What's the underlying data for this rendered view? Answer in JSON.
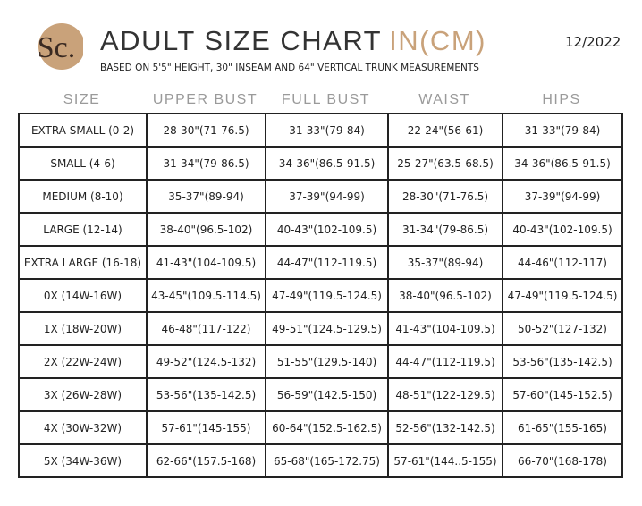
{
  "header": {
    "logo": "Sc.",
    "title": "ADULT SIZE CHART",
    "title_unit": "IN(CM)",
    "date": "12/2022",
    "subtitle": "BASED ON 5'5\" HEIGHT, 30\" INSEAM  AND 64\" VERTICAL TRUNK MEASUREMENTS"
  },
  "table": {
    "columns": [
      "SIZE",
      "UPPER BUST",
      "FULL BUST",
      "WAIST",
      "HIPS"
    ],
    "rows": [
      [
        "EXTRA SMALL (0-2)",
        "28-30\"(71-76.5)",
        "31-33\"(79-84)",
        "22-24\"(56-61)",
        "31-33\"(79-84)"
      ],
      [
        "SMALL (4-6)",
        "31-34\"(79-86.5)",
        "34-36\"(86.5-91.5)",
        "25-27\"(63.5-68.5)",
        "34-36\"(86.5-91.5)"
      ],
      [
        "MEDIUM (8-10)",
        "35-37\"(89-94)",
        "37-39\"(94-99)",
        "28-30\"(71-76.5)",
        "37-39\"(94-99)"
      ],
      [
        "LARGE (12-14)",
        "38-40\"(96.5-102)",
        "40-43\"(102-109.5)",
        "31-34\"(79-86.5)",
        "40-43\"(102-109.5)"
      ],
      [
        "EXTRA LARGE (16-18)",
        "41-43\"(104-109.5)",
        "44-47\"(112-119.5)",
        "35-37\"(89-94)",
        "44-46\"(112-117)"
      ],
      [
        "0X (14W-16W)",
        "43-45\"(109.5-114.5)",
        "47-49\"(119.5-124.5)",
        "38-40\"(96.5-102)",
        "47-49\"(119.5-124.5)"
      ],
      [
        "1X (18W-20W)",
        "46-48\"(117-122)",
        "49-51\"(124.5-129.5)",
        "41-43\"(104-109.5)",
        "50-52\"(127-132)"
      ],
      [
        "2X (22W-24W)",
        "49-52\"(124.5-132)",
        "51-55\"(129.5-140)",
        "44-47\"(112-119.5)",
        "53-56\"(135-142.5)"
      ],
      [
        "3X (26W-28W)",
        "53-56\"(135-142.5)",
        "56-59\"(142.5-150)",
        "48-51\"(122-129.5)",
        "57-60\"(145-152.5)"
      ],
      [
        "4X (30W-32W)",
        "57-61\"(145-155)",
        "60-64\"(152.5-162.5)",
        "52-56\"(132-142.5)",
        "61-65\"(155-165)"
      ],
      [
        "5X (34W-36W)",
        "62-66\"(157.5-168)",
        "65-68\"(165-172.75)",
        "57-61\"(144..5-155)",
        "66-70\"(168-178)"
      ]
    ]
  }
}
